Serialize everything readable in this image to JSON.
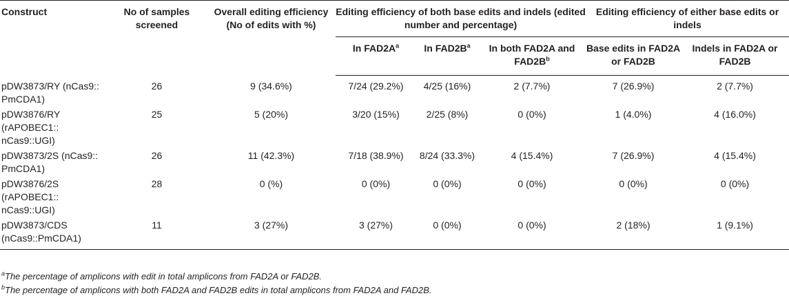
{
  "header": {
    "construct": "Construct",
    "samples": "No of samples screened",
    "overall": "Overall editing efficiency (No of edits with %)",
    "group_both": "Editing efficiency of both base edits and indels (edited number and percentage)",
    "group_either": "Editing efficiency of either base edits or indels",
    "in_fad2a": "In FAD2A",
    "in_fad2a_sup": "a",
    "in_fad2b": "In FAD2B",
    "in_fad2b_sup": "a",
    "in_both": "In both FAD2A and FAD2B",
    "in_both_sup": "b",
    "base_edits": "Base edits in FAD2A or FAD2B",
    "indels": "Indels in FAD2A or FAD2B"
  },
  "rows": [
    {
      "construct_l1": "pDW3873/RY (nCas9::",
      "construct_l2": "PmCDA1)",
      "construct_l3": "",
      "samples": "26",
      "overall": "9 (34.6%)",
      "fad2a": "7/24 (29.2%)",
      "fad2b": "4/25 (16%)",
      "both": "2 (7.7%)",
      "base": "7 (26.9%)",
      "indels": "2 (7.7%)"
    },
    {
      "construct_l1": "pDW3876/RY",
      "construct_l2": "(rAPOBEC1::",
      "construct_l3": "nCas9::UGI)",
      "samples": "25",
      "overall": "5 (20%)",
      "fad2a": "3/20 (15%)",
      "fad2b": "2/25 (8%)",
      "both": "0 (0%)",
      "base": "1 (4.0%)",
      "indels": "4 (16.0%)"
    },
    {
      "construct_l1": "pDW3873/2S (nCas9::",
      "construct_l2": "PmCDA1)",
      "construct_l3": "",
      "samples": "26",
      "overall": "11 (42.3%)",
      "fad2a": "7/18 (38.9%)",
      "fad2b": "8/24 (33.3%)",
      "both": "4 (15.4%)",
      "base": "7 (26.9%)",
      "indels": "4 (15.4%)"
    },
    {
      "construct_l1": "pDW3876/2S",
      "construct_l2": "(rAPOBEC1::",
      "construct_l3": "nCas9::UGI)",
      "samples": "28",
      "overall": "0 (%)",
      "fad2a": "0 (0%)",
      "fad2b": "0 (0%)",
      "both": "0 (0%)",
      "base": "0 (0%)",
      "indels": "0 (0%)"
    },
    {
      "construct_l1": "pDW3873/CDS",
      "construct_l2": "(nCas9::PmCDA1)",
      "construct_l3": "",
      "samples": "11",
      "overall": "3 (27%)",
      "fad2a": "3 (27%)",
      "fad2b": "0 (0%)",
      "both": "0 (0%)",
      "base": "2 (18%)",
      "indels": "1 (9.1%)"
    }
  ],
  "footnotes": {
    "a_mark": "a",
    "a_text": "The percentage of amplicons with edit in total amplicons from FAD2A or FAD2B.",
    "b_mark": "b",
    "b_text": "The percentage of amplicons with both FAD2A and FAD2B edits in total amplicons from FAD2A and FAD2B."
  }
}
